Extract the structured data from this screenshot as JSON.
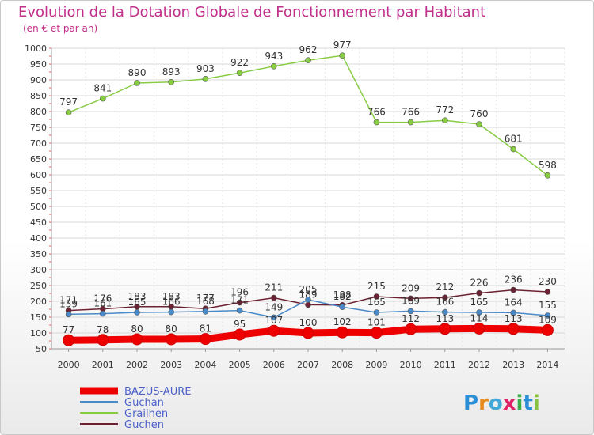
{
  "chart_data": {
    "type": "line",
    "title": "Evolution de la Dotation Globale de Fonctionnement par Habitant",
    "subtitle": "(en € et par an)",
    "xlabel": "",
    "ylabel": "",
    "ylim": [
      50,
      1000
    ],
    "yticks": [
      50,
      100,
      150,
      200,
      250,
      300,
      350,
      400,
      450,
      500,
      550,
      600,
      650,
      700,
      750,
      800,
      850,
      900,
      950,
      1000
    ],
    "categories": [
      "2000",
      "2001",
      "2002",
      "2003",
      "2004",
      "2005",
      "2006",
      "2007",
      "2008",
      "2009",
      "2010",
      "2011",
      "2012",
      "2013",
      "2014"
    ],
    "legend_position": "bottom-left",
    "series": [
      {
        "name": "Grailhen",
        "color": "#88cc44",
        "values": [
          797,
          841,
          890,
          893,
          903,
          922,
          943,
          962,
          977,
          766,
          766,
          772,
          760,
          681,
          598
        ]
      },
      {
        "name": "Guchen",
        "color": "#6b2232",
        "values": [
          171,
          176,
          183,
          183,
          177,
          196,
          211,
          189,
          188,
          215,
          209,
          212,
          226,
          236,
          230
        ]
      },
      {
        "name": "Guchan",
        "color": "#4a8ac8",
        "values": [
          159,
          161,
          165,
          166,
          168,
          171,
          149,
          205,
          182,
          165,
          169,
          166,
          165,
          164,
          155
        ]
      },
      {
        "name": "BAZUS-AURE",
        "color": "#ee0000",
        "values": [
          77,
          78,
          80,
          80,
          81,
          95,
          107,
          100,
          102,
          101,
          112,
          113,
          114,
          113,
          109
        ]
      }
    ],
    "legend_order": [
      "BAZUS-AURE",
      "Guchan",
      "Grailhen",
      "Guchen"
    ],
    "brand": "Proxiti"
  }
}
